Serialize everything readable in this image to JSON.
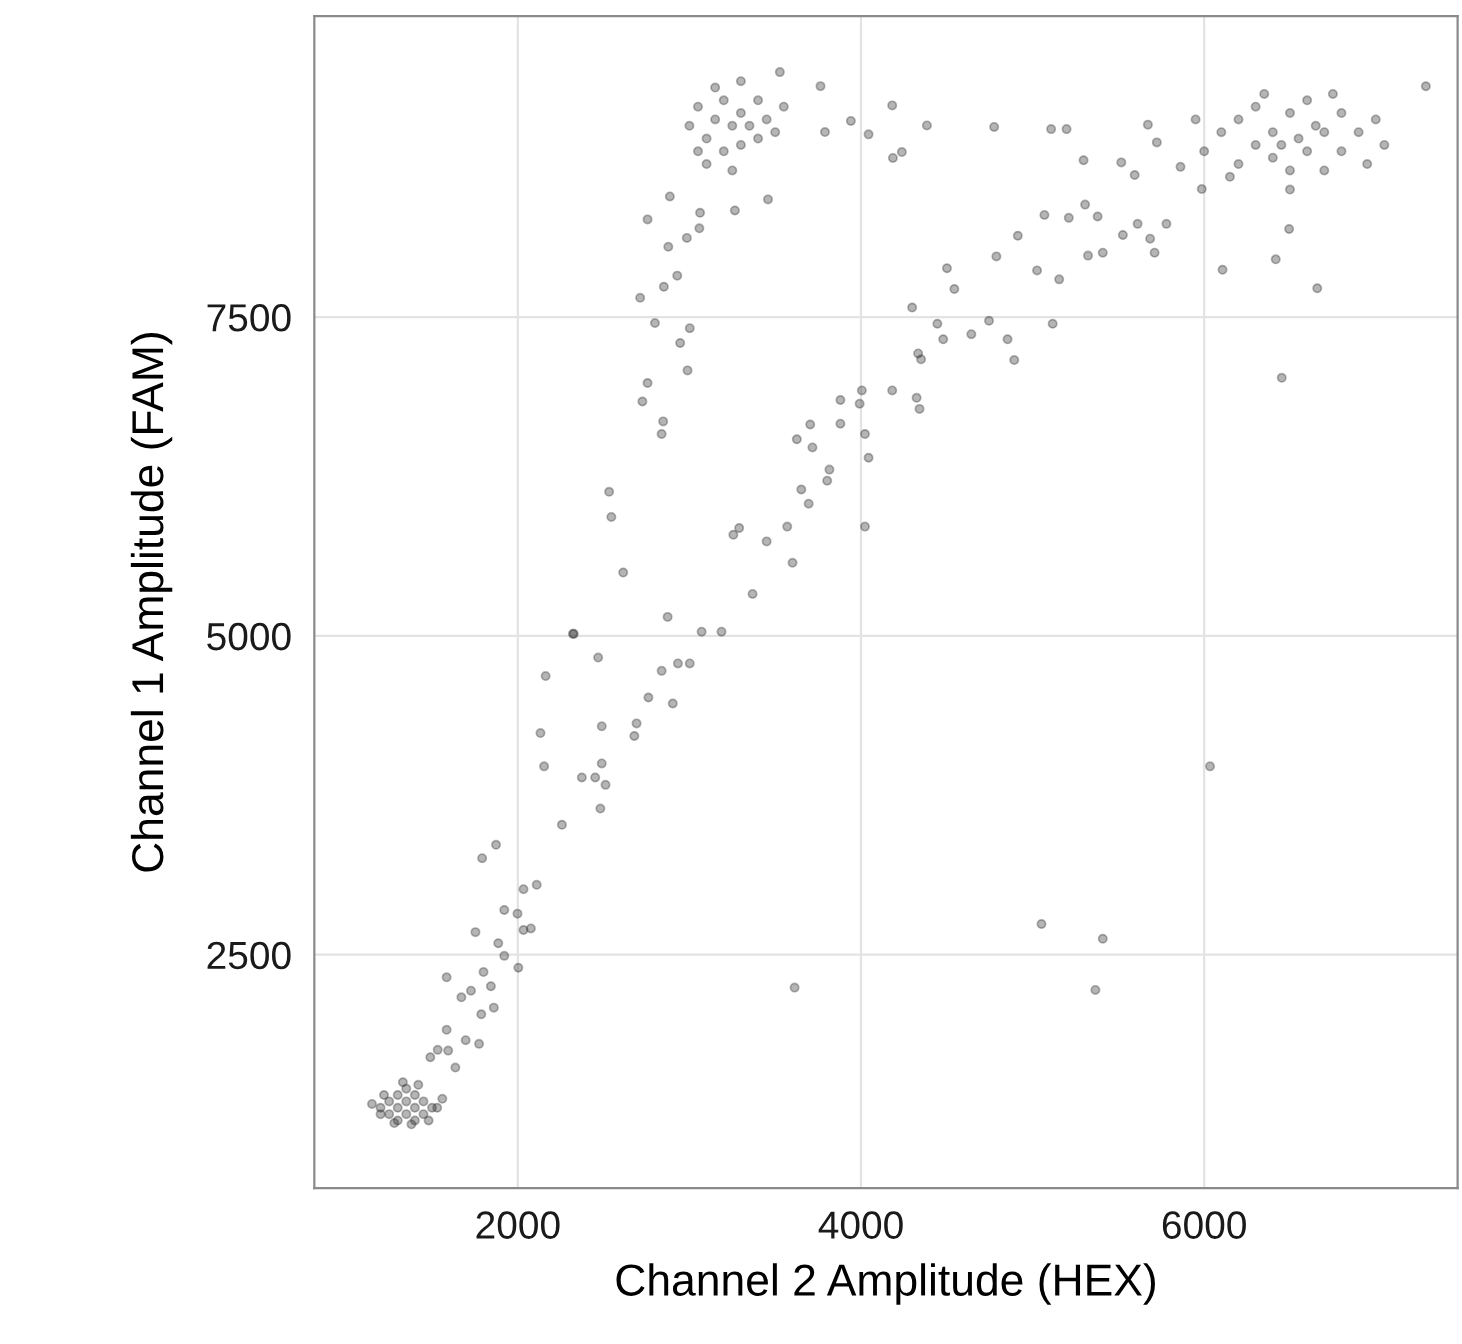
{
  "chart_data": {
    "type": "scatter",
    "xlabel": "Channel 2 Amplitude (HEX)",
    "ylabel": "Channel 1 Amplitude (FAM)",
    "xlim": [
      814,
      7477
    ],
    "ylim": [
      670,
      9860
    ],
    "xticks": [
      2000,
      4000,
      6000
    ],
    "yticks": [
      2500,
      5000,
      7500
    ],
    "grid": true,
    "marker": "circle",
    "series": [
      {
        "color": "#2b2b2b",
        "x": [
          1200,
          1250,
          1250,
          1300,
          1300,
          1300,
          1350,
          1350,
          1350,
          1400,
          1400,
          1400,
          1450,
          1450,
          1500,
          1200,
          1280,
          1380,
          1480,
          1530,
          1150,
          1220,
          1330,
          1420,
          1560,
          3000,
          3050,
          3100,
          3150,
          3200,
          3200,
          3250,
          3300,
          3300,
          3350,
          3400,
          3400,
          3450,
          3500,
          3150,
          3300,
          3100,
          3250,
          3050,
          3550,
          6000,
          6100,
          6200,
          6200,
          6300,
          6300,
          6400,
          6400,
          6500,
          6500,
          6550,
          6600,
          6600,
          6700,
          6700,
          6800,
          6800,
          6900,
          6950,
          7000,
          6450,
          6650,
          6150,
          5950,
          6350,
          7050,
          6500,
          6750,
          7292,
          2756,
          2886,
          2877,
          2985,
          3058,
          3062,
          2713,
          2851,
          2929,
          2799,
          3002,
          2946,
          2989,
          2756,
          2726,
          2847,
          2838,
          2532,
          2545,
          2614,
          2873,
          2326,
          3071,
          3187,
          3764,
          3527,
          3790,
          3941,
          4044,
          4182,
          4384,
          4776,
          5108,
          5198,
          4186,
          4238,
          3458,
          3265,
          4298,
          4501,
          4544,
          4445,
          4479,
          4643,
          4746,
          4789,
          4914,
          5026,
          4893,
          4854,
          5117,
          5155,
          5069,
          5211,
          5323,
          5409,
          5306,
          5379,
          5526,
          5612,
          5711,
          5685,
          5780,
          5517,
          5297,
          5672,
          5724,
          5595,
          5862,
          5986,
          6107,
          6417,
          6495,
          6659,
          6452,
          4333,
          4350,
          4005,
          3992,
          3880,
          4182,
          4324,
          4341,
          3880,
          4023,
          4044,
          3704,
          3626,
          3717,
          3816,
          3803,
          3652,
          3695,
          3256,
          3290,
          3450,
          3570,
          3601,
          3368,
          4023,
          2321,
          2468,
          2162,
          2838,
          2933,
          3002,
          2761,
          2903,
          2692,
          2679,
          2489,
          2132,
          2153,
          2373,
          2451,
          2511,
          2489,
          2481,
          2257,
          1792,
          1873,
          2110,
          2033,
          1998,
          1921,
          2076,
          2033,
          1753,
          1886,
          1921,
          2003,
          1585,
          1800,
          1727,
          1843,
          1671,
          1860,
          1787,
          1585,
          1533,
          1696,
          1774,
          1636,
          1490,
          1594,
          3613,
          5052,
          5409,
          5366,
          6034
        ],
        "values": [
          1300,
          1250,
          1350,
          1200,
          1300,
          1400,
          1250,
          1350,
          1450,
          1200,
          1300,
          1400,
          1250,
          1350,
          1300,
          1250,
          1180,
          1170,
          1200,
          1300,
          1330,
          1400,
          1500,
          1480,
          1370,
          9000,
          9150,
          8900,
          9050,
          8800,
          9200,
          9000,
          9100,
          8850,
          9000,
          9200,
          8900,
          9050,
          8950,
          9300,
          9350,
          8700,
          8650,
          8800,
          9150,
          8800,
          8950,
          8700,
          9050,
          8850,
          9150,
          8750,
          8950,
          8650,
          9100,
          8900,
          9200,
          8800,
          8950,
          8650,
          9100,
          8800,
          8950,
          8700,
          9050,
          8850,
          9000,
          8600,
          9050,
          9250,
          8850,
          8500,
          9250,
          9310,
          8266,
          8446,
          8051,
          8121,
          8196,
          8318,
          7651,
          7738,
          7825,
          7453,
          7413,
          7297,
          7082,
          6983,
          6838,
          6682,
          6583,
          6130,
          5933,
          5497,
          5149,
          5016,
          5033,
          5033,
          9311,
          9421,
          8951,
          9038,
          8933,
          9160,
          9003,
          8991,
          8974,
          8974,
          8748,
          8794,
          8423,
          8336,
          7575,
          7883,
          7720,
          7448,
          7326,
          7366,
          7471,
          7976,
          8138,
          7866,
          7163,
          7326,
          7448,
          7796,
          8301,
          8278,
          7982,
          8005,
          8382,
          8289,
          8144,
          8231,
          8005,
          8115,
          8231,
          8713,
          8730,
          9009,
          8870,
          8614,
          8678,
          8504,
          7871,
          7953,
          8191,
          7726,
          7024,
          7215,
          7169,
          6925,
          6821,
          6850,
          6925,
          6867,
          6780,
          6664,
          6583,
          6397,
          6658,
          6542,
          6478,
          6304,
          6217,
          6148,
          6037,
          5793,
          5846,
          5741,
          5857,
          5573,
          5329,
          5857,
          5016,
          4830,
          4685,
          4726,
          4784,
          4784,
          4517,
          4470,
          4314,
          4215,
          4291,
          4238,
          3977,
          3890,
          3890,
          3832,
          4000,
          3646,
          3519,
          3257,
          3362,
          3048,
          3014,
          2822,
          2851,
          2706,
          2694,
          2677,
          2590,
          2491,
          2398,
          2323,
          2364,
          2218,
          2253,
          2166,
          2085,
          2033,
          1911,
          1754,
          1830,
          1801,
          1615,
          1696,
          1748,
          2242,
          2741,
          2625,
          2224,
          3977
        ]
      }
    ]
  }
}
